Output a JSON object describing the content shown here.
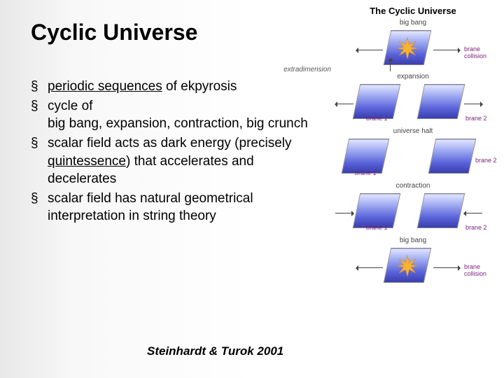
{
  "title": "Cyclic Universe",
  "bullets": [
    {
      "html": "<u>periodic sequences</u> of ekpyrosis"
    },
    {
      "html": "cycle of<br>big bang, expansion, contraction, big crunch"
    },
    {
      "html": "scalar field acts as dark energy (precisely <u>quintessence</u>) that accelerates and decelerates"
    },
    {
      "html": "scalar field has natural geometrical interpretation in string theory"
    }
  ],
  "citation": "Steinhardt & Turok 2001",
  "figure": {
    "title": "The Cyclic Universe",
    "labels": {
      "bigbang_top": "big bang",
      "brane_collision_top": "brane\ncollision",
      "expansion": "expansion",
      "brane1": "brane 1",
      "brane2": "brane 2",
      "universe_halt": "universe halt",
      "contraction": "contraction",
      "bigbang_bottom": "big bang",
      "brane_collision_bottom": "brane\ncollision",
      "extradimension": "extradimension"
    },
    "colors": {
      "brane_gradient_top": "#dfe4ff",
      "brane_gradient_mid": "#5962d9",
      "brane_gradient_bot": "#3b3fae",
      "burst": "#f9b233",
      "caption": "#7a1f7a",
      "arrow": "#444444"
    }
  }
}
